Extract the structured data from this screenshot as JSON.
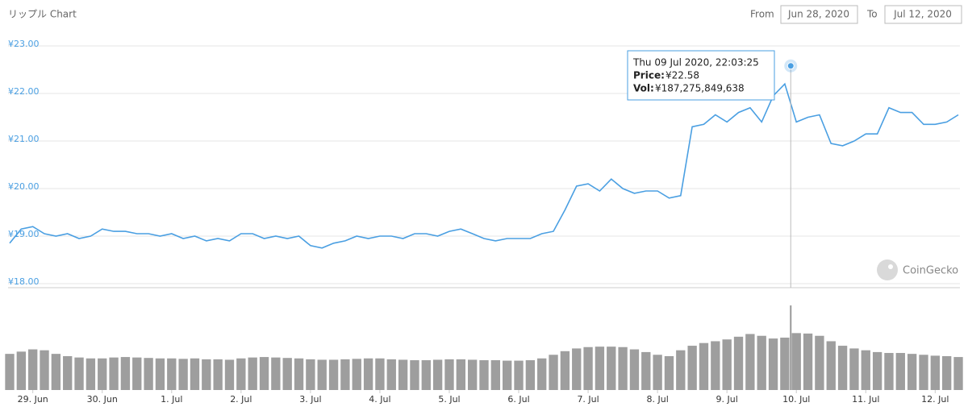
{
  "chart_data": {
    "type": "line",
    "title": "リップル Chart",
    "range": {
      "from_label": "From",
      "from": "Jun 28, 2020",
      "to_label": "To",
      "to": "Jul 12, 2020"
    },
    "watermark": "CoinGecko",
    "x": [
      "2020-06-28T16:00",
      "2020-06-28T20:00",
      "2020-06-29T00:00",
      "2020-06-29T04:00",
      "2020-06-29T08:00",
      "2020-06-29T12:00",
      "2020-06-29T16:00",
      "2020-06-29T20:00",
      "2020-06-30T00:00",
      "2020-06-30T04:00",
      "2020-06-30T08:00",
      "2020-06-30T12:00",
      "2020-06-30T16:00",
      "2020-06-30T20:00",
      "2020-07-01T00:00",
      "2020-07-01T04:00",
      "2020-07-01T08:00",
      "2020-07-01T12:00",
      "2020-07-01T16:00",
      "2020-07-01T20:00",
      "2020-07-02T00:00",
      "2020-07-02T04:00",
      "2020-07-02T08:00",
      "2020-07-02T12:00",
      "2020-07-02T16:00",
      "2020-07-02T20:00",
      "2020-07-03T00:00",
      "2020-07-03T04:00",
      "2020-07-03T08:00",
      "2020-07-03T12:00",
      "2020-07-03T16:00",
      "2020-07-03T20:00",
      "2020-07-04T00:00",
      "2020-07-04T04:00",
      "2020-07-04T08:00",
      "2020-07-04T12:00",
      "2020-07-04T16:00",
      "2020-07-04T20:00",
      "2020-07-05T00:00",
      "2020-07-05T04:00",
      "2020-07-05T08:00",
      "2020-07-05T12:00",
      "2020-07-05T16:00",
      "2020-07-05T20:00",
      "2020-07-06T00:00",
      "2020-07-06T04:00",
      "2020-07-06T08:00",
      "2020-07-06T12:00",
      "2020-07-06T16:00",
      "2020-07-06T20:00",
      "2020-07-07T00:00",
      "2020-07-07T04:00",
      "2020-07-07T08:00",
      "2020-07-07T12:00",
      "2020-07-07T16:00",
      "2020-07-07T20:00",
      "2020-07-08T00:00",
      "2020-07-08T04:00",
      "2020-07-08T08:00",
      "2020-07-08T12:00",
      "2020-07-08T16:00",
      "2020-07-08T20:00",
      "2020-07-09T00:00",
      "2020-07-09T04:00",
      "2020-07-09T08:00",
      "2020-07-09T12:00",
      "2020-07-09T16:00",
      "2020-07-09T20:00",
      "2020-07-10T00:00",
      "2020-07-10T04:00",
      "2020-07-10T08:00",
      "2020-07-10T12:00",
      "2020-07-10T16:00",
      "2020-07-10T20:00",
      "2020-07-11T00:00",
      "2020-07-11T04:00",
      "2020-07-11T08:00",
      "2020-07-11T12:00",
      "2020-07-11T16:00",
      "2020-07-11T20:00",
      "2020-07-12T00:00",
      "2020-07-12T04:00",
      "2020-07-12T08:00"
    ],
    "series": [
      {
        "type": "line",
        "color": "#4a9fe2",
        "values": [
          18.85,
          19.15,
          19.2,
          19.05,
          19.0,
          19.05,
          18.95,
          19.0,
          19.15,
          19.1,
          19.1,
          19.05,
          19.05,
          19.0,
          19.05,
          18.95,
          19.0,
          18.9,
          18.95,
          18.9,
          19.05,
          19.05,
          18.95,
          19.0,
          18.95,
          19.0,
          18.8,
          18.75,
          18.85,
          18.9,
          19.0,
          18.95,
          19.0,
          19.0,
          18.95,
          19.05,
          19.05,
          19.0,
          19.1,
          19.15,
          19.05,
          18.95,
          18.9,
          18.95,
          18.95,
          18.95,
          19.05,
          19.1,
          19.55,
          20.05,
          20.1,
          19.95,
          20.2,
          20.0,
          19.9,
          19.95,
          19.95,
          19.8,
          19.85,
          21.3,
          21.35,
          21.55,
          21.4,
          21.6,
          21.7,
          21.4,
          21.95,
          22.2,
          21.4,
          21.5,
          21.55,
          20.95,
          20.9,
          21.0,
          21.15,
          21.15,
          21.7,
          21.6,
          21.6,
          21.35,
          21.35,
          21.4,
          21.55
        ]
      },
      {
        "type": "bar",
        "color": "#9e9e9e",
        "values": [
          80000000000,
          85000000000,
          90000000000,
          88000000000,
          80000000000,
          75000000000,
          72000000000,
          70000000000,
          70000000000,
          72000000000,
          73000000000,
          72000000000,
          71000000000,
          70000000000,
          70000000000,
          69000000000,
          70000000000,
          68000000000,
          68000000000,
          67000000000,
          70000000000,
          72000000000,
          73000000000,
          72000000000,
          71000000000,
          70000000000,
          68000000000,
          67000000000,
          67000000000,
          68000000000,
          69000000000,
          70000000000,
          70000000000,
          68000000000,
          67000000000,
          66000000000,
          66000000000,
          67000000000,
          68000000000,
          68000000000,
          67000000000,
          66000000000,
          66000000000,
          65000000000,
          65000000000,
          66000000000,
          70000000000,
          78000000000,
          86000000000,
          92000000000,
          95000000000,
          96000000000,
          96000000000,
          95000000000,
          90000000000,
          84000000000,
          78000000000,
          75000000000,
          88000000000,
          98000000000,
          104000000000,
          108000000000,
          112000000000,
          118000000000,
          124000000000,
          120000000000,
          114000000000,
          116000000000,
          126000000000,
          125000000000,
          120000000000,
          108000000000,
          98000000000,
          92000000000,
          88000000000,
          84000000000,
          82000000000,
          82000000000,
          80000000000,
          78000000000,
          76000000000,
          75000000000,
          73000000000
        ]
      }
    ],
    "xlim": [
      "2020-06-28T16:00",
      "2020-07-12T08:00"
    ],
    "xticks": [
      {
        "value": "2020-06-29T00:00",
        "label": "29. Jun"
      },
      {
        "value": "2020-06-30T00:00",
        "label": "30. Jun"
      },
      {
        "value": "2020-07-01T00:00",
        "label": "1. Jul"
      },
      {
        "value": "2020-07-02T00:00",
        "label": "2. Jul"
      },
      {
        "value": "2020-07-03T00:00",
        "label": "3. Jul"
      },
      {
        "value": "2020-07-04T00:00",
        "label": "4. Jul"
      },
      {
        "value": "2020-07-05T00:00",
        "label": "5. Jul"
      },
      {
        "value": "2020-07-06T00:00",
        "label": "6. Jul"
      },
      {
        "value": "2020-07-07T00:00",
        "label": "7. Jul"
      },
      {
        "value": "2020-07-08T00:00",
        "label": "8. Jul"
      },
      {
        "value": "2020-07-09T00:00",
        "label": "9. Jul"
      },
      {
        "value": "2020-07-10T00:00",
        "label": "10. Jul"
      },
      {
        "value": "2020-07-11T00:00",
        "label": "11. Jul"
      },
      {
        "value": "2020-07-12T00:00",
        "label": "12. Jul"
      }
    ],
    "ylim": [
      18,
      23
    ],
    "yticks": [
      {
        "value": 23,
        "label": "¥23.00"
      },
      {
        "value": 22,
        "label": "¥22.00"
      },
      {
        "value": 21,
        "label": "¥21.00"
      },
      {
        "value": 20,
        "label": "¥20.00"
      },
      {
        "value": 19,
        "label": "¥19.00"
      },
      {
        "value": 18,
        "label": "¥18.00"
      }
    ],
    "grid": true,
    "tooltip": {
      "x": "2020-07-09T22:03:25",
      "title": "Thu 09 Jul 2020, 22:03:25",
      "price_name": "Price:",
      "price": {
        "value": 22.58,
        "label": "¥22.58"
      },
      "volume_name": "Vol:",
      "volume": {
        "value": 187275849638,
        "label": "¥187,275,849,638"
      }
    }
  }
}
